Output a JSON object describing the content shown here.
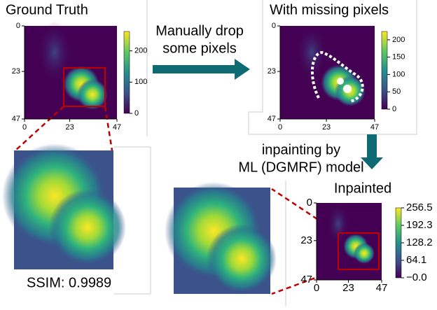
{
  "panels": {
    "ground_truth": {
      "title": "Ground Truth",
      "xticks": [
        0,
        23,
        47
      ],
      "yticks": [
        0,
        23,
        47
      ],
      "lim": [
        0,
        47
      ],
      "colorbar": {
        "ticks": [
          0,
          100,
          200
        ],
        "lim": [
          0,
          262
        ]
      }
    },
    "missing": {
      "title": "With missing pixels",
      "xticks": [
        0,
        23,
        47
      ],
      "yticks": [
        0,
        23,
        47
      ],
      "lim": [
        0,
        47
      ],
      "colorbar": {
        "ticks": [
          0,
          50,
          100,
          150,
          200
        ],
        "lim": [
          0,
          224
        ]
      }
    },
    "inpainted": {
      "title": "Inpainted",
      "xticks": [
        0,
        23,
        47
      ],
      "yticks": [
        0,
        23,
        47
      ],
      "lim": [
        0,
        47
      ],
      "colorbar": {
        "ticks": [
          {
            "value": 0,
            "label": "−0.0"
          },
          64.1,
          128.2,
          192.3,
          256.5
        ],
        "lim": [
          0,
          256.5
        ]
      }
    }
  },
  "arrow_label": [
    "Manually drop",
    "some pixels"
  ],
  "model_label": [
    "inpainting by",
    "ML (DGMRF) model"
  ],
  "ssim": "SSIM: 0.9989"
}
